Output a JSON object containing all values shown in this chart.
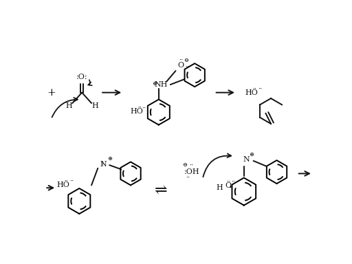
{
  "bg": "#ffffff",
  "lc": "#111111",
  "figsize": [
    5.12,
    3.84
  ],
  "dpi": 100,
  "xlim": [
    0,
    512
  ],
  "ylim": [
    0,
    384
  ]
}
